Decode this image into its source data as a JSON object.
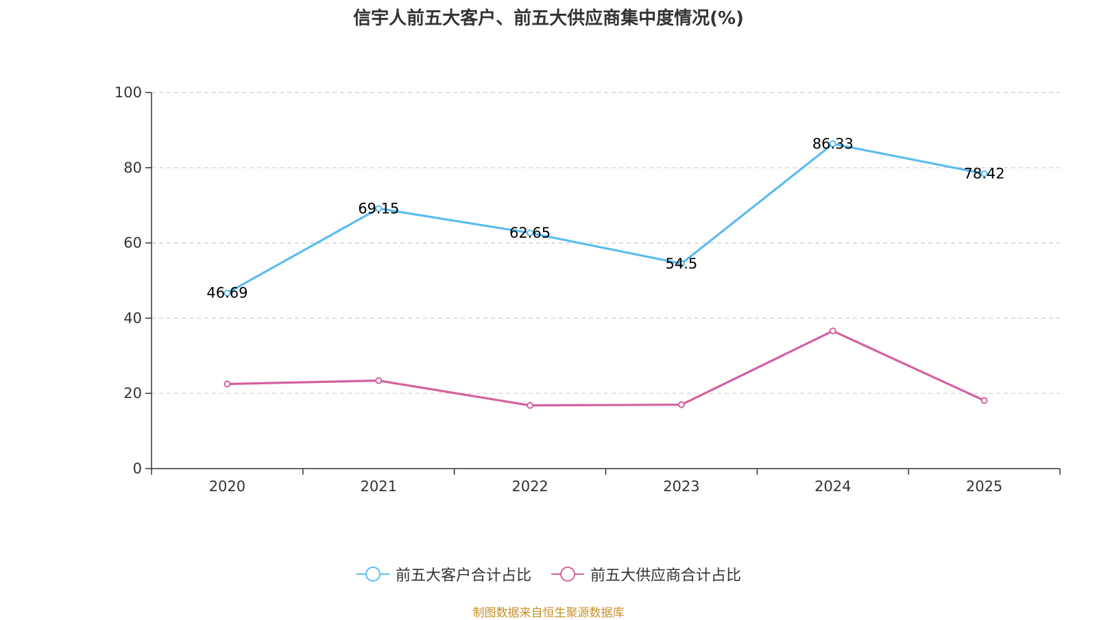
{
  "title": "信宇人前五大客户、前五大供应商集中度情况(%)",
  "source_note": "制图数据来自恒生聚源数据库",
  "chart_data": {
    "type": "line",
    "title": "信宇人前五大客户、前五大供应商集中度情况(%)",
    "x": [
      "2020",
      "2021",
      "2022",
      "2023",
      "2024",
      "2025"
    ],
    "ylim": [
      0,
      100
    ],
    "yticks": [
      0,
      20,
      40,
      60,
      80,
      100
    ],
    "grid": true,
    "legend_position": "bottom-center",
    "series": [
      {
        "name": "前五大客户合计占比",
        "color": "#5bbcf0",
        "values": [
          46.69,
          69.15,
          62.65,
          54.5,
          86.33,
          78.42
        ],
        "labels": [
          "46.69",
          "69.15",
          "62.65",
          "54.5",
          "86.33",
          "78.42"
        ],
        "show_labels": true
      },
      {
        "name": "前五大供应商合计占比",
        "color": "#d4609f",
        "values": [
          22.5,
          23.4,
          16.8,
          17.0,
          36.6,
          18.1
        ],
        "show_labels": false
      }
    ]
  }
}
